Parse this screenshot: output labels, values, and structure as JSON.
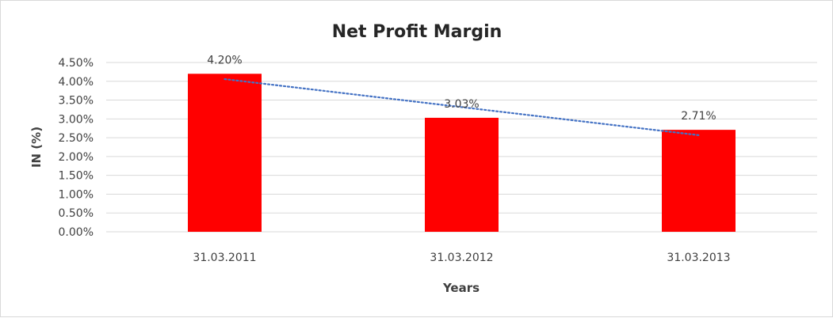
{
  "chart_data": {
    "type": "bar",
    "title": "Net Profit Margin",
    "xlabel": "Years",
    "ylabel": "IN (%)",
    "categories": [
      "31.03.2011",
      "31.03.2012",
      "31.03.2013"
    ],
    "values": [
      4.2,
      3.03,
      2.71
    ],
    "data_labels": [
      "4.20%",
      "3.03%",
      "2.71%"
    ],
    "ylim": [
      0,
      4.5
    ],
    "yticks": [
      "0.00%",
      "0.50%",
      "1.00%",
      "1.50%",
      "2.00%",
      "2.50%",
      "3.00%",
      "3.50%",
      "4.00%",
      "4.50%"
    ],
    "grid": true,
    "trendline": {
      "type": "linear",
      "style": "dotted",
      "color": "#4472C4"
    },
    "bar_color": "#FF0000"
  }
}
